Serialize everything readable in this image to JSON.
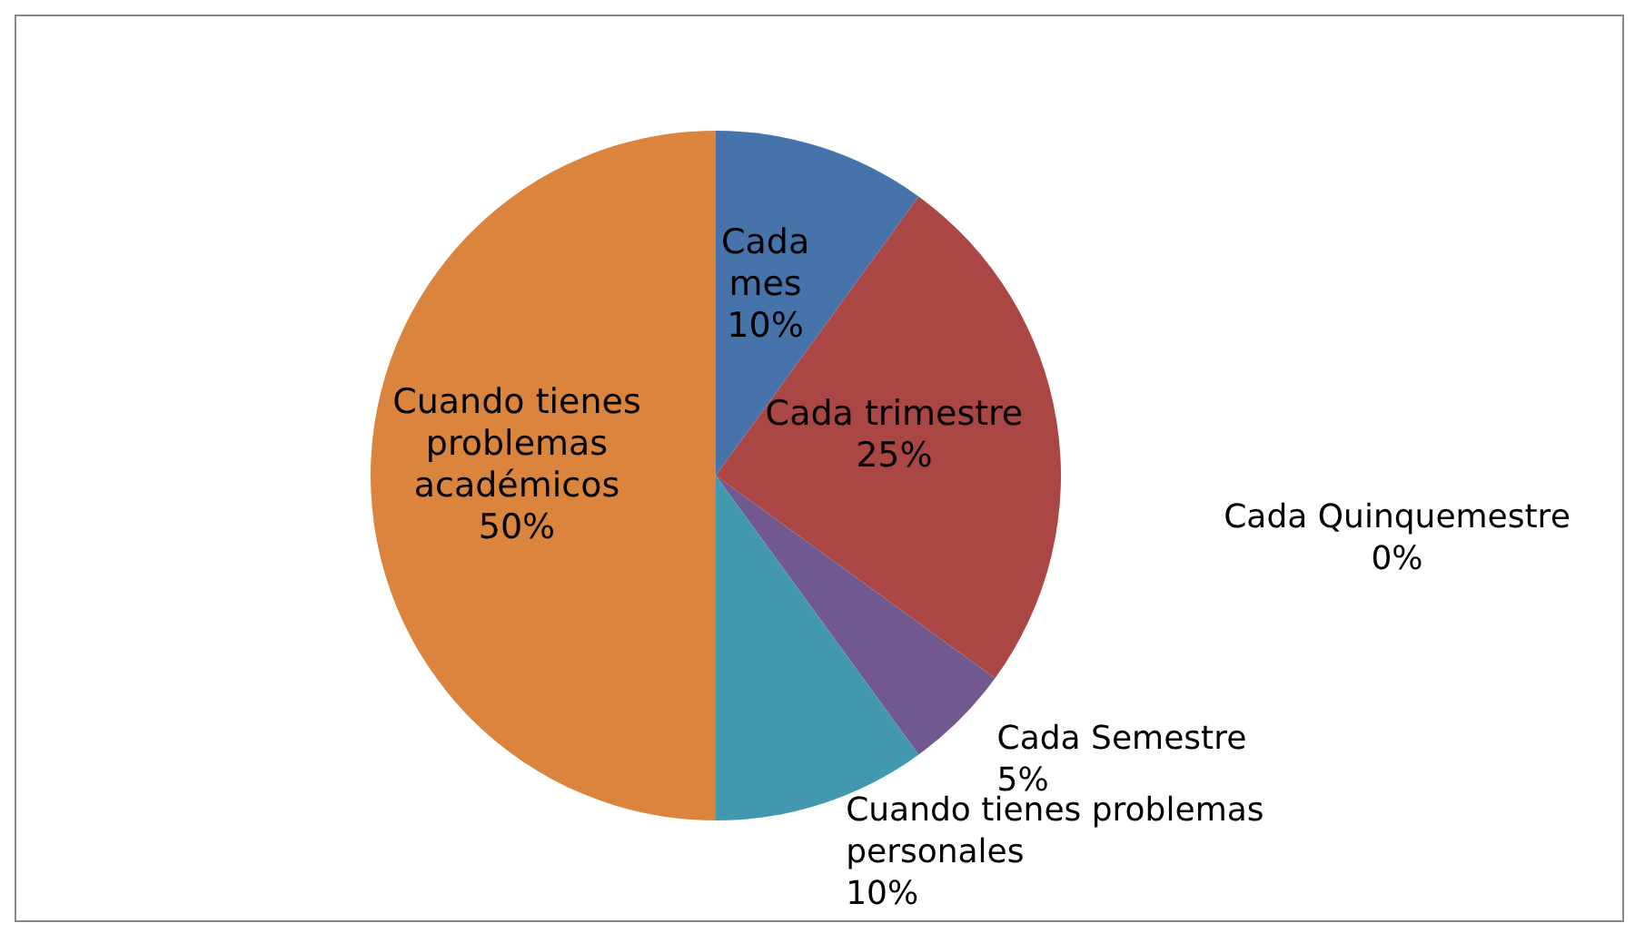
{
  "chart_data": {
    "type": "pie",
    "categories": [
      "Cada mes",
      "Cada trimestre",
      "Cada Semestre",
      "Cada Quinquemestre",
      "Cuando tienes problemas personales",
      "Cuando tienes problemas académicos"
    ],
    "values": [
      10,
      25,
      5,
      0,
      10,
      50
    ],
    "value_labels": [
      "10%",
      "25%",
      "5%",
      "0%",
      "10%",
      "50%"
    ],
    "colors": [
      "#4674aa",
      "#aa4644",
      "#71588f",
      "#89a54e",
      "#4198af",
      "#db843d"
    ],
    "legend": false
  }
}
